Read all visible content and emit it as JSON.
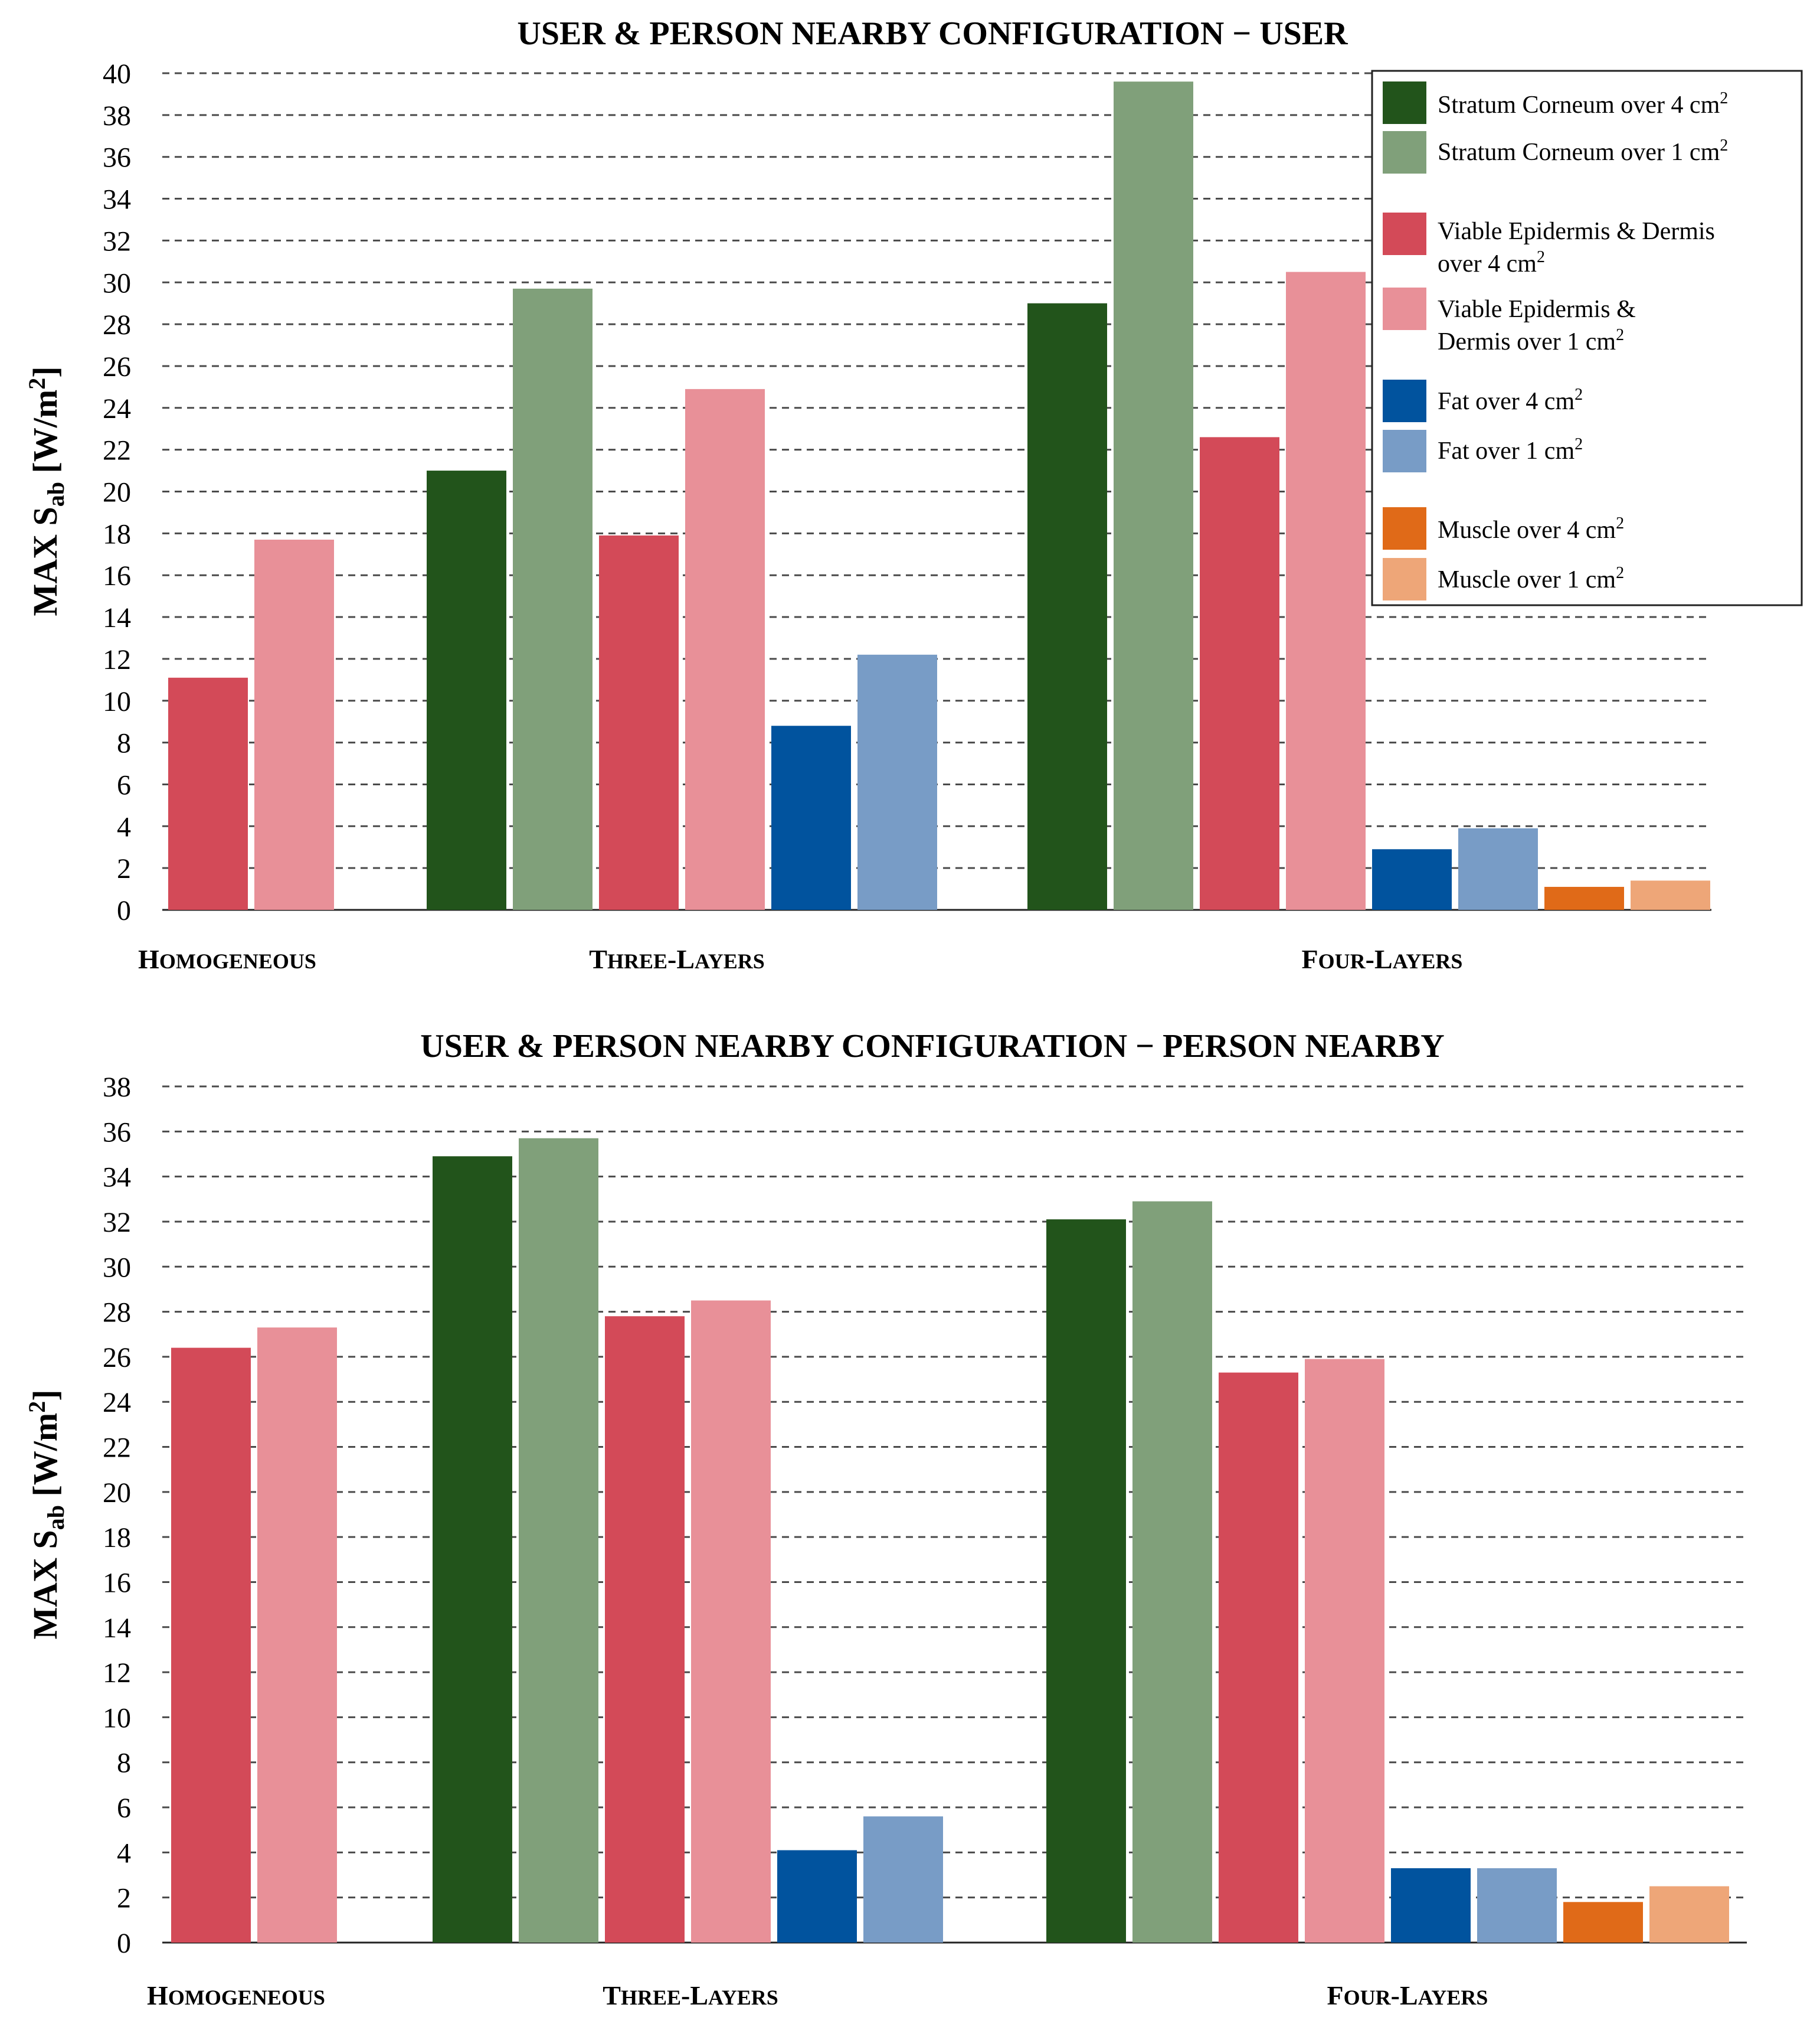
{
  "colors": {
    "stratum_4": "#22541b",
    "stratum_1": "#80a07a",
    "viable_4": "#d34a58",
    "viable_1": "#e89098",
    "fat_4": "#01539e",
    "fat_1": "#789cc6",
    "muscle_4": "#e06a18",
    "muscle_1": "#eea678"
  },
  "legend": [
    {
      "key": "stratum_4",
      "lines": [
        "Stratum Corneum over 4 cm"
      ],
      "sup": true
    },
    {
      "key": "stratum_1",
      "lines": [
        "Stratum Corneum over 1 cm"
      ],
      "sup": true
    },
    {
      "key": "viable_4",
      "lines": [
        "Viable Epidermis & Dermis",
        "over 4 cm"
      ],
      "sup": true
    },
    {
      "key": "viable_1",
      "lines": [
        "Viable Epidermis &",
        "Dermis over 1 cm"
      ],
      "sup": true
    },
    {
      "key": "fat_4",
      "lines": [
        "Fat over 4 cm"
      ],
      "sup": true
    },
    {
      "key": "fat_1",
      "lines": [
        "Fat over 1 cm"
      ],
      "sup": true
    },
    {
      "key": "muscle_4",
      "lines": [
        "Muscle over 4 cm"
      ],
      "sup": true
    },
    {
      "key": "muscle_1",
      "lines": [
        "Muscle over 1 cm"
      ],
      "sup": true
    }
  ],
  "legend_sup_text": "2",
  "chart_data": [
    {
      "type": "bar",
      "title": "USER & PERSON NEARBY CONFIGURATION − USER",
      "ylabel_main": "MAX S",
      "ylabel_sub": "ab",
      "ylabel_unit": " [W/m",
      "ylabel_unit_sup": "2",
      "ylabel_end": "]",
      "ylim": [
        0,
        40
      ],
      "ytick_step": 2,
      "grid": true,
      "legend_position": "top-right",
      "categories": [
        "HOMOGENEOUS",
        "THREE-LAYERS",
        "FOUR-LAYERS"
      ],
      "groups": [
        {
          "category": "HOMOGENEOUS",
          "bars": [
            {
              "key": "viable_4",
              "value": 11.1
            },
            {
              "key": "viable_1",
              "value": 17.7
            }
          ]
        },
        {
          "category": "THREE-LAYERS",
          "bars": [
            {
              "key": "stratum_4",
              "value": 21.0
            },
            {
              "key": "stratum_1",
              "value": 29.7
            },
            {
              "key": "viable_4",
              "value": 17.9
            },
            {
              "key": "viable_1",
              "value": 24.9
            },
            {
              "key": "fat_4",
              "value": 8.8
            },
            {
              "key": "fat_1",
              "value": 12.2
            }
          ]
        },
        {
          "category": "FOUR-LAYERS",
          "bars": [
            {
              "key": "stratum_4",
              "value": 29.0
            },
            {
              "key": "stratum_1",
              "value": 39.6
            },
            {
              "key": "viable_4",
              "value": 22.6
            },
            {
              "key": "viable_1",
              "value": 30.5
            },
            {
              "key": "fat_4",
              "value": 2.9
            },
            {
              "key": "fat_1",
              "value": 3.9
            },
            {
              "key": "muscle_4",
              "value": 1.1
            },
            {
              "key": "muscle_1",
              "value": 1.4
            }
          ]
        }
      ]
    },
    {
      "type": "bar",
      "title": "USER & PERSON NEARBY CONFIGURATION − PERSON NEARBY",
      "ylabel_main": "MAX S",
      "ylabel_sub": "ab",
      "ylabel_unit": " [W/m",
      "ylabel_unit_sup": "2",
      "ylabel_end": "]",
      "ylim": [
        0,
        38
      ],
      "ytick_step": 2,
      "grid": true,
      "categories": [
        "HOMOGENEOUS",
        "THREE-LAYERS",
        "FOUR-LAYERS"
      ],
      "groups": [
        {
          "category": "HOMOGENEOUS",
          "bars": [
            {
              "key": "viable_4",
              "value": 26.4
            },
            {
              "key": "viable_1",
              "value": 27.3
            }
          ]
        },
        {
          "category": "THREE-LAYERS",
          "bars": [
            {
              "key": "stratum_4",
              "value": 34.9
            },
            {
              "key": "stratum_1",
              "value": 35.7
            },
            {
              "key": "viable_4",
              "value": 27.8
            },
            {
              "key": "viable_1",
              "value": 28.5
            },
            {
              "key": "fat_4",
              "value": 4.1
            },
            {
              "key": "fat_1",
              "value": 5.6
            }
          ]
        },
        {
          "category": "FOUR-LAYERS",
          "bars": [
            {
              "key": "stratum_4",
              "value": 32.1
            },
            {
              "key": "stratum_1",
              "value": 32.9
            },
            {
              "key": "viable_4",
              "value": 25.3
            },
            {
              "key": "viable_1",
              "value": 25.9
            },
            {
              "key": "fat_4",
              "value": 3.3
            },
            {
              "key": "fat_1",
              "value": 3.3
            },
            {
              "key": "muscle_4",
              "value": 1.8
            },
            {
              "key": "muscle_1",
              "value": 2.5
            }
          ]
        }
      ]
    }
  ]
}
